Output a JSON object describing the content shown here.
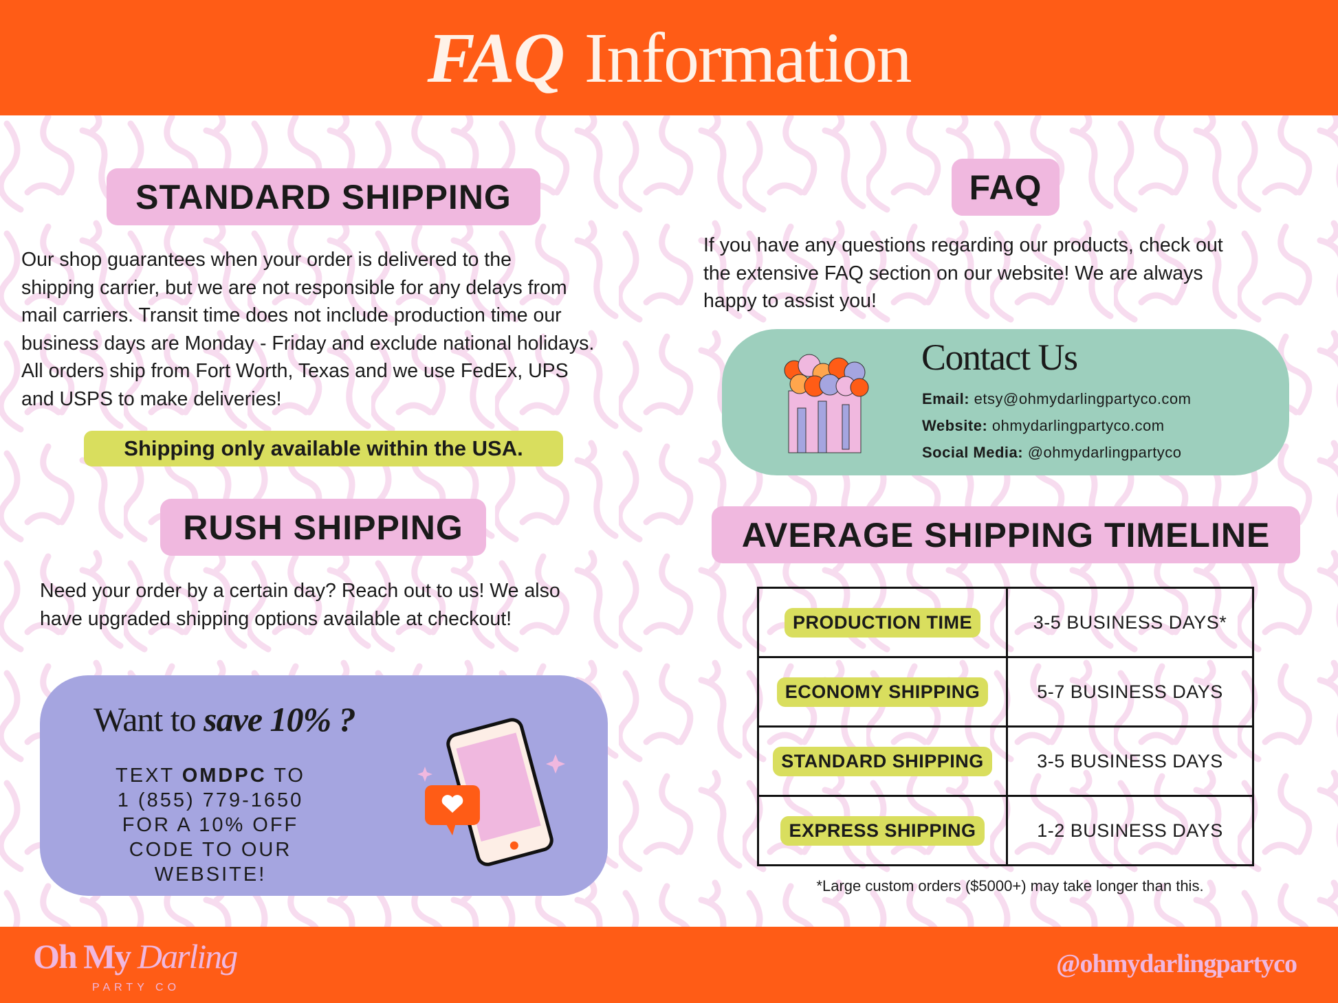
{
  "header": {
    "title_italic": "FAQ",
    "title_rest": "Information"
  },
  "standard": {
    "title": "STANDARD SHIPPING",
    "body": [
      "Our shop guarantees when your order is delivered to the",
      "shipping carrier, but we are not responsible for any delays from",
      "mail carriers.  Transit time does not include production time our",
      "business days are Monday - Friday and exclude national holidays.",
      "All orders ship from Fort Worth, Texas and we use FedEx, UPS",
      "and USPS to make deliveries!"
    ],
    "usa_note": "Shipping only available within the USA."
  },
  "rush": {
    "title": "RUSH SHIPPING",
    "body": [
      "Need your order by a certain day?  Reach out to us!  We also",
      "have upgraded shipping options available at checkout!"
    ]
  },
  "promo": {
    "heading_plain": "Want to ",
    "heading_bold": "save 10% ?",
    "line1_pre": "TEXT ",
    "line1_code": "OMDPC",
    "line1_post": " TO",
    "line2": "1 (855) 779-1650",
    "line3": "FOR A 10% OFF",
    "line4": "CODE TO OUR WEBSITE!",
    "icon": "phone-heart-icon"
  },
  "faq": {
    "title": "FAQ",
    "body": [
      "If you have any questions regarding our products, check out",
      "the extensive FAQ section on our website! We are always",
      "happy to assist you!"
    ]
  },
  "contact": {
    "title": "Contact Us",
    "icon": "balloon-garland-icon",
    "rows": [
      {
        "label": "Email:",
        "value": "etsy@ohmydarlingpartyco.com"
      },
      {
        "label": "Website:",
        "value": "ohmydarlingpartyco.com"
      },
      {
        "label": "Social Media:",
        "value": "@ohmydarlingpartyco"
      }
    ]
  },
  "timeline": {
    "title": "AVERAGE SHIPPING TIMELINE",
    "rows": [
      {
        "label": "PRODUCTION TIME",
        "value": "3-5 BUSINESS DAYS*"
      },
      {
        "label": "ECONOMY SHIPPING",
        "value": "5-7 BUSINESS DAYS"
      },
      {
        "label": "STANDARD SHIPPING",
        "value": "3-5 BUSINESS DAYS"
      },
      {
        "label": "EXPRESS SHIPPING",
        "value": "1-2 BUSINESS DAYS"
      }
    ],
    "footnote": "*Large custom orders ($5000+) may take longer than this."
  },
  "footer": {
    "logo_bold": "Oh My",
    "logo_italic": "Darling",
    "logo_sub": "PARTY CO",
    "handle": "@ohmydarlingpartyco"
  },
  "colors": {
    "orange": "#ff5c16",
    "pink": "#f0b8df",
    "yellow": "#d9de5e",
    "purple": "#a5a5e0",
    "mint": "#9dcfbd"
  }
}
